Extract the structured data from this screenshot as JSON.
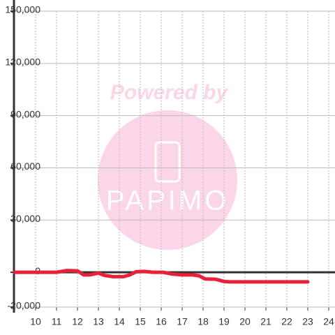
{
  "chart_data": {
    "type": "line",
    "x": [
      9,
      11,
      11.5,
      12,
      12.3,
      12.6,
      13,
      13.3,
      13.7,
      14.2,
      14.5,
      14.8,
      15.2,
      15.6,
      16.1,
      16.5,
      17,
      17.5,
      17.8,
      18.1,
      18.6,
      19,
      19.3,
      20,
      21,
      22,
      23
    ],
    "series": [
      {
        "color": "#e8213a",
        "values": [
          0,
          0,
          1000,
          800,
          -1500,
          -1500,
          -500,
          -1800,
          -2500,
          -2500,
          -1500,
          300,
          500,
          0,
          0,
          -1000,
          -1500,
          -1500,
          -2000,
          -3800,
          -4000,
          -5300,
          -5500,
          -5500,
          -5500,
          -5500,
          -5500
        ]
      }
    ],
    "xlim": [
      9,
      24.3
    ],
    "xticks": [
      10,
      11,
      12,
      13,
      14,
      15,
      16,
      17,
      18,
      19,
      20,
      21,
      22,
      23,
      24
    ],
    "ylim": [
      -20000,
      150000
    ],
    "yticks": [
      {
        "value": -20000,
        "label": "-20,000"
      },
      0,
      {
        "value": 30000,
        "label": "30,000"
      },
      {
        "value": 60000,
        "label": "60,000"
      },
      {
        "value": 90000,
        "label": "90,000"
      },
      {
        "value": 120000,
        "label": "120,000"
      },
      {
        "value": 150000,
        "label": "150,000"
      }
    ],
    "grid": true,
    "watermark": {
      "title": "Powered by",
      "brand": "PAPIMO"
    }
  }
}
